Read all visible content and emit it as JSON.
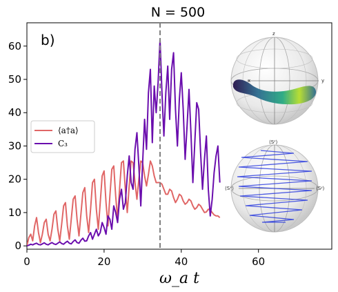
{
  "chart_data": {
    "type": "line",
    "title": "N = 500",
    "panel_label": "b)",
    "xlabel": "ω_a t",
    "ylabel": "",
    "xlim": [
      0,
      79
    ],
    "ylim": [
      -1,
      67
    ],
    "xticks": [
      0,
      20,
      40,
      60
    ],
    "yticks": [
      0,
      10,
      20,
      30,
      40,
      50,
      60
    ],
    "vline": {
      "x": 34.5,
      "style": "dashed",
      "color": "#7f7f7f"
    },
    "legend": {
      "placement": "center-left"
    },
    "series": [
      {
        "name": "⟨a†a⟩",
        "color": "#e06666",
        "x": [
          0,
          0.5,
          1,
          1.5,
          2,
          2.5,
          3,
          3.5,
          4,
          4.5,
          5,
          5.5,
          6,
          6.5,
          7,
          7.5,
          8,
          8.5,
          9,
          9.5,
          10,
          10.5,
          11,
          11.5,
          12,
          12.5,
          13,
          13.5,
          14,
          14.5,
          15,
          15.5,
          16,
          16.5,
          17,
          17.5,
          18,
          18.5,
          19,
          19.5,
          20,
          20.5,
          21,
          21.5,
          22,
          22.5,
          23,
          23.5,
          24,
          24.5,
          25,
          25.5,
          26,
          26.5,
          27,
          27.5,
          28,
          28.5,
          29,
          29.5,
          30,
          30.5,
          31,
          31.5,
          32,
          32.5,
          33,
          33.5,
          34,
          34.5,
          35,
          35.5,
          36,
          36.5,
          37,
          37.5,
          38,
          38.5,
          39,
          39.5,
          40,
          40.5,
          41,
          41.5,
          42,
          42.5,
          43,
          43.5,
          44,
          44.5,
          45,
          45.5,
          46,
          46.5,
          47,
          47.5,
          48,
          48.5,
          49,
          49.5,
          50
        ],
        "y": [
          0,
          2.5,
          3.5,
          1.5,
          6,
          8.5,
          4,
          1,
          3.5,
          7,
          8,
          3.5,
          1.5,
          5,
          9.5,
          10.5,
          5,
          1.5,
          6.5,
          12,
          13,
          6,
          2,
          8,
          14,
          15,
          8,
          3,
          9.5,
          16,
          17.5,
          9,
          4,
          11,
          19,
          20,
          11,
          5,
          13,
          21,
          22.5,
          13,
          6,
          15,
          23,
          24,
          15,
          8,
          17,
          25,
          25.5,
          17,
          10,
          18,
          25.5,
          25,
          19,
          14,
          20,
          25.5,
          25,
          21,
          18,
          21.5,
          25.5,
          24,
          21,
          19,
          19,
          19,
          18.5,
          17,
          15.5,
          15.5,
          17,
          16.5,
          14.5,
          13,
          14,
          15.5,
          15,
          13.5,
          12.5,
          13,
          14,
          13.5,
          12,
          11,
          11.5,
          12.5,
          12,
          11,
          10,
          10.2,
          11,
          10.8,
          10,
          9.3,
          9,
          9,
          8.5
        ]
      },
      {
        "name": "C₃",
        "color": "#6a0dad",
        "x": [
          0,
          0.5,
          1,
          1.5,
          2,
          2.5,
          3,
          3.5,
          4,
          4.5,
          5,
          5.5,
          6,
          6.5,
          7,
          7.5,
          8,
          8.5,
          9,
          9.5,
          10,
          10.5,
          11,
          11.5,
          12,
          12.5,
          13,
          13.5,
          14,
          14.5,
          15,
          15.5,
          16,
          16.5,
          17,
          17.5,
          18,
          18.5,
          19,
          19.5,
          20,
          20.5,
          21,
          21.5,
          22,
          22.5,
          23,
          23.5,
          24,
          24.5,
          25,
          25.5,
          26,
          26.5,
          27,
          27.5,
          28,
          28.5,
          29,
          29.5,
          30,
          30.5,
          31,
          31.5,
          32,
          32.5,
          33,
          33.5,
          34,
          34.5,
          35,
          35.5,
          36,
          36.5,
          37,
          37.5,
          38,
          38.5,
          39,
          39.5,
          40,
          40.5,
          41,
          41.5,
          42,
          42.5,
          43,
          43.5,
          44,
          44.5,
          45,
          45.5,
          46,
          46.5,
          47,
          47.5,
          48,
          48.5,
          49,
          49.5,
          50
        ],
        "y": [
          0,
          0.2,
          0.5,
          0.3,
          0.6,
          0.8,
          0.4,
          0.3,
          0.6,
          0.9,
          0.5,
          0.3,
          0.7,
          1,
          0.6,
          0.4,
          0.8,
          1.2,
          0.7,
          0.5,
          1,
          1.4,
          0.8,
          0.6,
          1.3,
          1.8,
          1,
          0.8,
          1.7,
          2.3,
          1.4,
          1.5,
          3,
          4,
          2,
          3.5,
          5,
          3,
          4,
          7,
          5.5,
          3.5,
          9,
          8,
          5,
          12,
          10,
          7,
          14,
          17,
          11,
          13,
          21,
          27,
          19,
          17,
          29,
          34,
          24,
          12,
          25,
          38,
          29,
          46,
          53,
          31,
          48,
          40,
          49,
          62,
          46,
          33,
          46,
          54,
          38,
          53,
          58,
          41,
          30,
          44,
          52,
          41,
          26,
          36,
          47,
          34,
          19,
          31,
          43,
          41,
          28,
          17,
          26,
          33,
          17,
          9,
          14,
          22,
          27,
          30,
          19
        ]
      }
    ]
  },
  "insets": {
    "top_sphere": {
      "labels": {
        "z": "z",
        "x": "x",
        "y": "y"
      },
      "colormap_colors": [
        "#26124a",
        "#2c6c8f",
        "#27a981",
        "#b5dd2b"
      ]
    },
    "bottom_sphere": {
      "labels": {
        "sz": "⟨Sᶻ⟩",
        "sx": "⟨Sˣ⟩",
        "sy": "⟨Sʸ⟩"
      },
      "trajectory_color": "#2233dd"
    }
  }
}
